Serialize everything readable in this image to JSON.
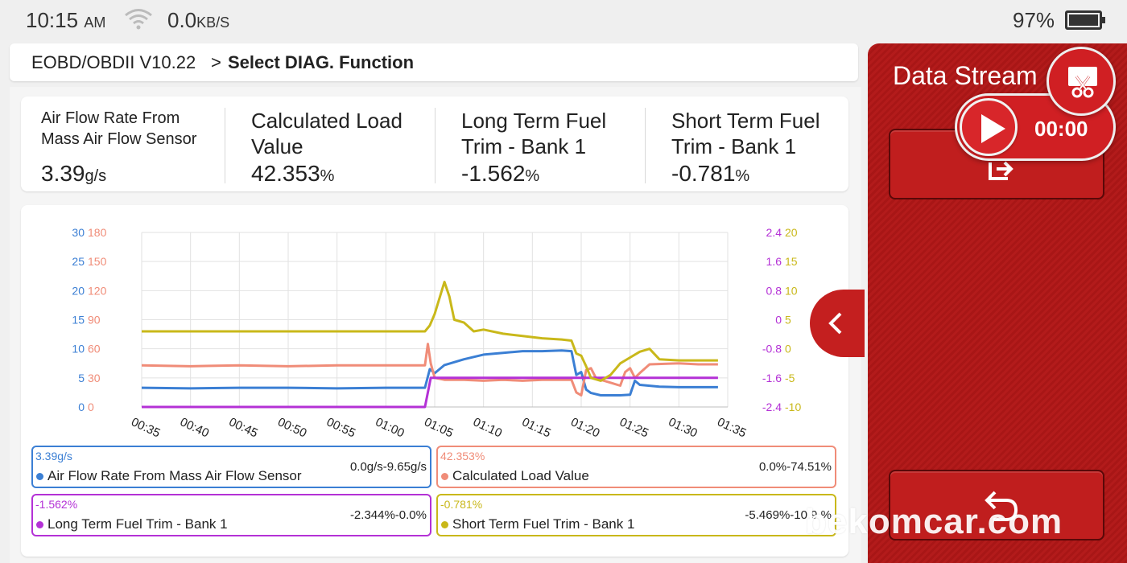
{
  "status": {
    "time": "10:15",
    "ampm": "AM",
    "speed": "0.0",
    "speed_unit": "KB/S",
    "battery": "97%"
  },
  "breadcrumb": {
    "root": "EOBD/OBDII V10.22",
    "separator": ">",
    "current": "Select DIAG. Function"
  },
  "metrics": [
    {
      "name": "Air Flow Rate From Mass Air Flow Sensor",
      "value": "3.39",
      "unit": "g/s"
    },
    {
      "name": "Calculated Load Value",
      "value": "42.353",
      "unit": "%"
    },
    {
      "name": "Long Term Fuel Trim - Bank 1",
      "value": "-1.562",
      "unit": "%"
    },
    {
      "name": "Short Term Fuel Trim - Bank 1",
      "value": "-0.781",
      "unit": "%"
    }
  ],
  "legends": [
    {
      "value": "3.39g/s",
      "name": "Air Flow Rate From Mass Air Flow Sensor",
      "range": "0.0g/s-9.65g/s",
      "color": "#3b7fd4"
    },
    {
      "value": "42.353%",
      "name": "Calculated Load Value",
      "range": "0.0%-74.51%",
      "color": "#f08c78"
    },
    {
      "value": "-1.562%",
      "name": "Long Term Fuel Trim - Bank 1",
      "range": "-2.344%-0.0%",
      "color": "#b431d6"
    },
    {
      "value": "-0.781%",
      "name": "Short Term Fuel Trim - Bank 1",
      "range": "-5.469%-10.9 %",
      "color": "#c9b81a"
    }
  ],
  "panel": {
    "title": "Data Stream",
    "recorder_time": "00:00"
  },
  "watermark": "bekomcar.com",
  "icons": {
    "wifi": "wifi-icon",
    "battery": "battery-icon",
    "play": "play-icon",
    "screenshot": "screenshot-icon",
    "export": "export-icon",
    "back": "back-icon",
    "collapse": "chevron-left-icon"
  },
  "chart_data": {
    "type": "line",
    "x_ticks": [
      "00:35",
      "00:40",
      "00:45",
      "00:50",
      "00:55",
      "01:00",
      "01:05",
      "01:10",
      "01:15",
      "01:20",
      "01:25",
      "01:30",
      "01:35"
    ],
    "axes": {
      "left_blue": {
        "ticks": [
          "30",
          "25",
          "20",
          "15",
          "10",
          "5",
          "0"
        ],
        "color": "#3b7fd4",
        "range": [
          0,
          30
        ]
      },
      "left_salmon": {
        "ticks": [
          "180",
          "150",
          "120",
          "90",
          "60",
          "30",
          "0"
        ],
        "color": "#f08c78",
        "range": [
          0,
          180
        ]
      },
      "right_purple": {
        "ticks": [
          "2.4",
          "1.6",
          "0.8",
          "0",
          "-0.8",
          "-1.6",
          "-2.4"
        ],
        "color": "#b431d6",
        "range": [
          -2.4,
          2.4
        ]
      },
      "right_yellow": {
        "ticks": [
          "20",
          "15",
          "10",
          "5",
          "0",
          "-5",
          "-10"
        ],
        "color": "#c9b81a",
        "range": [
          -10,
          20
        ]
      }
    },
    "x_range_seconds": [
      35,
      95
    ],
    "grid": true,
    "series": [
      {
        "axis": "left_blue",
        "color": "#3b7fd4",
        "points": [
          [
            35,
            3.3
          ],
          [
            40,
            3.2
          ],
          [
            45,
            3.3
          ],
          [
            50,
            3.3
          ],
          [
            55,
            3.2
          ],
          [
            60,
            3.3
          ],
          [
            64,
            3.3
          ],
          [
            64.5,
            6.5
          ],
          [
            65,
            5.8
          ],
          [
            66,
            7.2
          ],
          [
            68,
            8.2
          ],
          [
            70,
            9.0
          ],
          [
            72,
            9.3
          ],
          [
            74,
            9.6
          ],
          [
            76,
            9.6
          ],
          [
            78,
            9.7
          ],
          [
            79,
            9.6
          ],
          [
            79.5,
            5.5
          ],
          [
            80,
            6.0
          ],
          [
            80.5,
            3.0
          ],
          [
            81,
            2.4
          ],
          [
            82,
            2.0
          ],
          [
            83,
            2.0
          ],
          [
            84,
            2.0
          ],
          [
            85,
            2.1
          ],
          [
            85.5,
            4.5
          ],
          [
            86,
            3.8
          ],
          [
            88,
            3.5
          ],
          [
            90,
            3.4
          ],
          [
            92,
            3.4
          ],
          [
            94,
            3.4
          ]
        ]
      },
      {
        "axis": "left_salmon",
        "color": "#f08c78",
        "points": [
          [
            35,
            43
          ],
          [
            40,
            42
          ],
          [
            45,
            43
          ],
          [
            50,
            42
          ],
          [
            55,
            43
          ],
          [
            60,
            43
          ],
          [
            64,
            43
          ],
          [
            64.3,
            65
          ],
          [
            64.6,
            45
          ],
          [
            65,
            30
          ],
          [
            66,
            28
          ],
          [
            68,
            28
          ],
          [
            70,
            27
          ],
          [
            72,
            28
          ],
          [
            74,
            27
          ],
          [
            76,
            28
          ],
          [
            78,
            28
          ],
          [
            79,
            28
          ],
          [
            79.5,
            15
          ],
          [
            80,
            12
          ],
          [
            80.5,
            38
          ],
          [
            81,
            40
          ],
          [
            81.5,
            30
          ],
          [
            82,
            28
          ],
          [
            84,
            22
          ],
          [
            84.5,
            36
          ],
          [
            85,
            40
          ],
          [
            85.5,
            30
          ],
          [
            86,
            35
          ],
          [
            87,
            44
          ],
          [
            90,
            45
          ],
          [
            92,
            44
          ],
          [
            94,
            44
          ]
        ]
      },
      {
        "axis": "right_purple",
        "color": "#b431d6",
        "points": [
          [
            35,
            -2.4
          ],
          [
            45,
            -2.4
          ],
          [
            55,
            -2.4
          ],
          [
            64,
            -2.4
          ],
          [
            64.6,
            -1.6
          ],
          [
            70,
            -1.6
          ],
          [
            80,
            -1.6
          ],
          [
            90,
            -1.6
          ],
          [
            94,
            -1.6
          ]
        ]
      },
      {
        "axis": "right_yellow",
        "color": "#c9b81a",
        "points": [
          [
            35,
            3.0
          ],
          [
            45,
            3.0
          ],
          [
            55,
            3.0
          ],
          [
            64,
            3.0
          ],
          [
            64.5,
            4.0
          ],
          [
            65,
            6.0
          ],
          [
            66,
            11.5
          ],
          [
            66.5,
            9.0
          ],
          [
            67,
            5.0
          ],
          [
            68,
            4.5
          ],
          [
            69,
            3.0
          ],
          [
            70,
            3.3
          ],
          [
            72,
            2.6
          ],
          [
            74,
            2.2
          ],
          [
            76,
            1.8
          ],
          [
            78,
            1.6
          ],
          [
            79,
            1.4
          ],
          [
            79.5,
            -0.8
          ],
          [
            80,
            -1.2
          ],
          [
            80.5,
            -3.0
          ],
          [
            81,
            -5.0
          ],
          [
            82,
            -5.5
          ],
          [
            83,
            -4.5
          ],
          [
            84,
            -2.5
          ],
          [
            85,
            -1.5
          ],
          [
            86,
            -0.5
          ],
          [
            87,
            0
          ],
          [
            88,
            -1.8
          ],
          [
            90,
            -2.0
          ],
          [
            92,
            -2.0
          ],
          [
            94,
            -2.0
          ]
        ]
      }
    ]
  }
}
